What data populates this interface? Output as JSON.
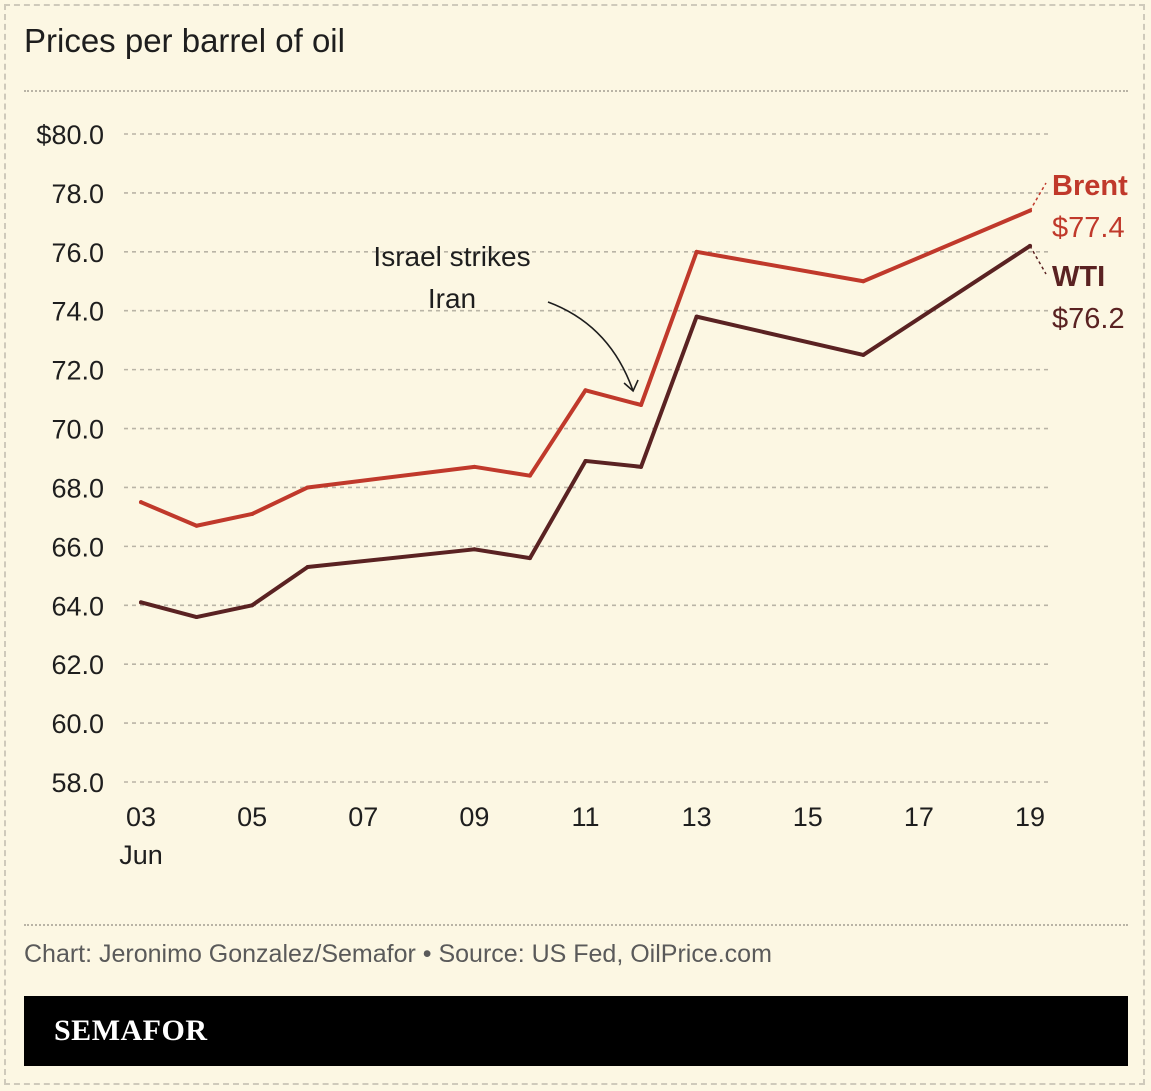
{
  "title": "Prices per barrel of oil",
  "credit": "Chart: Jeronimo Gonzalez/Semafor • Source: US Fed, OilPrice.com",
  "brand": "SEMAFOR",
  "colors": {
    "brent": "#c0392b",
    "wti": "#5a2222",
    "grid": "#b9b4a6",
    "background": "#fcf7e3"
  },
  "chart_data": {
    "type": "line",
    "title": "Prices per barrel of oil",
    "xlabel": "",
    "ylabel": "",
    "x_unit": "day of June",
    "x": [
      3,
      4,
      5,
      6,
      9,
      10,
      11,
      12,
      13,
      16,
      19
    ],
    "xlim": [
      3,
      19
    ],
    "x_ticks": [
      3,
      5,
      7,
      9,
      11,
      13,
      15,
      17,
      19
    ],
    "x_tick_labels": [
      "03",
      "05",
      "07",
      "09",
      "11",
      "13",
      "15",
      "17",
      "19"
    ],
    "x_first_sublabel": "Jun",
    "ylim": [
      58,
      80
    ],
    "y_ticks": [
      58,
      60,
      62,
      64,
      66,
      68,
      70,
      72,
      74,
      76,
      78,
      80
    ],
    "y_tick_labels": [
      "58.0",
      "60.0",
      "62.0",
      "64.0",
      "66.0",
      "68.0",
      "70.0",
      "72.0",
      "74.0",
      "76.0",
      "78.0",
      "$80.0"
    ],
    "grid": true,
    "series": [
      {
        "name": "Brent",
        "color": "#c0392b",
        "end_label": "$77.4",
        "values": [
          67.5,
          66.7,
          67.1,
          68.0,
          68.7,
          68.4,
          71.3,
          70.8,
          76.0,
          75.0,
          77.4
        ]
      },
      {
        "name": "WTI",
        "color": "#5a2222",
        "end_label": "$76.2",
        "values": [
          64.1,
          63.6,
          64.0,
          65.3,
          65.9,
          65.6,
          68.9,
          68.7,
          73.8,
          72.5,
          76.2
        ]
      }
    ],
    "annotations": [
      {
        "text_lines": [
          "Israel strikes",
          "Iran"
        ],
        "x": 12,
        "y": 70.8
      }
    ]
  }
}
